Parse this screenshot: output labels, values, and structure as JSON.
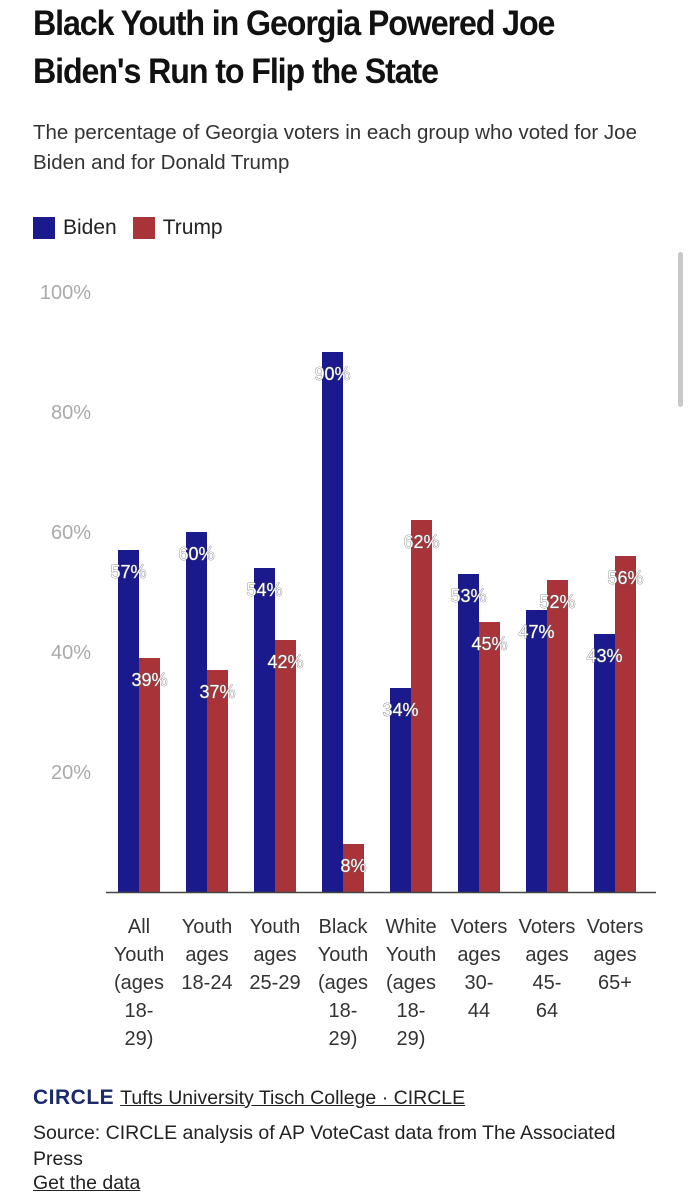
{
  "title": "Black Youth in Georgia Powered Joe Biden's Run to Flip the State",
  "subtitle": "The percentage of Georgia voters in each group who voted for Joe Biden and for Donald Trump",
  "legend": [
    {
      "name": "Biden",
      "color": "#1a1a8c"
    },
    {
      "name": "Trump",
      "color": "#a8343a"
    }
  ],
  "chart_data": {
    "type": "bar",
    "categories": [
      [
        "All",
        "Youth",
        "(ages",
        "18-",
        "29)"
      ],
      [
        "Youth",
        "ages",
        "18-24"
      ],
      [
        "Youth",
        "ages",
        "25-29"
      ],
      [
        "Black",
        "Youth",
        "(ages",
        "18-",
        "29)"
      ],
      [
        "White",
        "Youth",
        "(ages",
        "18-",
        "29)"
      ],
      [
        "Voters",
        "ages",
        "30-",
        "44"
      ],
      [
        "Voters",
        "ages",
        "45-",
        "64"
      ],
      [
        "Voters",
        "ages",
        "65+"
      ]
    ],
    "series": [
      {
        "name": "Biden",
        "color": "#1a1a8c",
        "values": [
          57,
          60,
          54,
          90,
          34,
          53,
          47,
          43
        ],
        "labels": [
          "57%",
          "60%",
          "54%",
          "90%",
          "34%",
          "53%",
          "47%",
          "43%"
        ]
      },
      {
        "name": "Trump",
        "color": "#a8343a",
        "values": [
          39,
          37,
          42,
          8,
          62,
          45,
          52,
          56
        ],
        "labels": [
          "39%",
          "37%",
          "42%",
          "8%",
          "62%",
          "45%",
          "52%",
          "56%"
        ]
      }
    ],
    "ylim": [
      0,
      100
    ],
    "yticks": [
      20,
      40,
      60,
      80,
      100
    ],
    "ytick_labels": [
      "20%",
      "40%",
      "60%",
      "80%",
      "100%"
    ],
    "grid": false,
    "legend_position": "top-left"
  },
  "footer": {
    "logo": "CIRCLE",
    "org": "Tufts University Tisch College · CIRCLE",
    "source": "Source: CIRCLE analysis of AP VoteCast data from The Associated Press",
    "get_data": "Get the data"
  }
}
